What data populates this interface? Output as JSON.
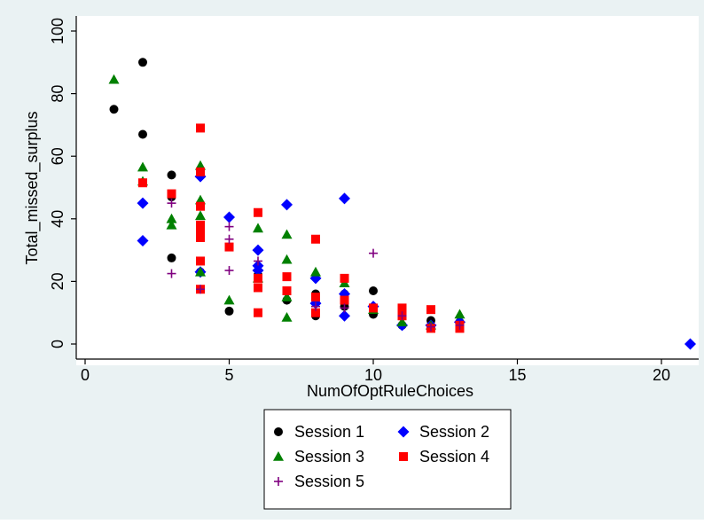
{
  "chart_data": {
    "type": "scatter",
    "xlabel": "NumOfOptRuleChoices",
    "ylabel": "Total_missed_surplus",
    "xlim": [
      0,
      22
    ],
    "ylim": [
      -5,
      100
    ],
    "xticks": [
      0,
      5,
      10,
      15,
      20
    ],
    "yticks": [
      0,
      20,
      40,
      60,
      80,
      100
    ],
    "grid": false,
    "legend_position": "bottom-center",
    "series": [
      {
        "name": "Session 1",
        "marker": "circle",
        "color": "#000000",
        "points": [
          [
            1,
            75
          ],
          [
            2,
            90
          ],
          [
            2,
            67
          ],
          [
            3,
            54
          ],
          [
            3,
            27.5
          ],
          [
            3,
            47
          ],
          [
            4,
            23
          ],
          [
            5,
            10.5
          ],
          [
            6,
            22
          ],
          [
            7,
            14
          ],
          [
            8,
            16
          ],
          [
            8,
            9
          ],
          [
            9,
            12
          ],
          [
            9,
            16
          ],
          [
            10,
            17
          ],
          [
            10,
            9.5
          ],
          [
            11,
            6
          ],
          [
            12,
            7.5
          ],
          [
            13,
            7
          ]
        ]
      },
      {
        "name": "Session 2",
        "marker": "diamond",
        "color": "#0000ff",
        "points": [
          [
            2,
            45
          ],
          [
            2,
            33
          ],
          [
            4,
            53.5
          ],
          [
            4,
            23
          ],
          [
            5,
            40.5
          ],
          [
            6,
            30
          ],
          [
            6,
            25
          ],
          [
            6,
            23.5
          ],
          [
            7,
            44.5
          ],
          [
            8,
            21
          ],
          [
            8,
            13
          ],
          [
            9,
            46.5
          ],
          [
            9,
            16
          ],
          [
            9,
            9
          ],
          [
            10,
            12
          ],
          [
            11,
            6
          ],
          [
            12,
            6
          ],
          [
            13,
            7
          ],
          [
            21,
            0
          ]
        ]
      },
      {
        "name": "Session 3",
        "marker": "triangle",
        "color": "#008000",
        "points": [
          [
            1,
            84.5
          ],
          [
            2,
            56.5
          ],
          [
            2,
            52
          ],
          [
            3,
            40
          ],
          [
            3,
            38
          ],
          [
            4,
            57
          ],
          [
            4,
            46
          ],
          [
            4,
            41
          ],
          [
            4,
            23
          ],
          [
            5,
            14
          ],
          [
            6,
            37
          ],
          [
            6,
            21
          ],
          [
            7,
            35
          ],
          [
            7,
            27
          ],
          [
            7,
            15
          ],
          [
            7,
            8.5
          ],
          [
            8,
            23
          ],
          [
            9,
            19.5
          ],
          [
            10,
            11
          ],
          [
            11,
            7
          ],
          [
            12,
            6
          ],
          [
            13,
            9.5
          ]
        ]
      },
      {
        "name": "Session 4",
        "marker": "square",
        "color": "#ff0000",
        "points": [
          [
            2,
            51.5
          ],
          [
            3,
            48
          ],
          [
            4,
            69
          ],
          [
            4,
            55
          ],
          [
            4,
            44
          ],
          [
            4,
            38
          ],
          [
            4,
            36
          ],
          [
            4,
            34
          ],
          [
            4,
            26.5
          ],
          [
            4,
            17.5
          ],
          [
            5,
            31
          ],
          [
            6,
            42
          ],
          [
            6,
            21
          ],
          [
            6,
            18
          ],
          [
            6,
            10
          ],
          [
            7,
            21.5
          ],
          [
            7,
            17
          ],
          [
            8,
            33.5
          ],
          [
            8,
            15
          ],
          [
            8,
            10
          ],
          [
            9,
            21
          ],
          [
            9,
            14
          ],
          [
            10,
            11.5
          ],
          [
            11,
            11.5
          ],
          [
            11,
            9
          ],
          [
            12,
            11
          ],
          [
            12,
            5
          ],
          [
            13,
            6
          ],
          [
            13,
            5
          ]
        ]
      },
      {
        "name": "Session 5",
        "marker": "plus",
        "color": "#800080",
        "points": [
          [
            3,
            45
          ],
          [
            3,
            22.5
          ],
          [
            4,
            17.5
          ],
          [
            5,
            37.5
          ],
          [
            5,
            33.5
          ],
          [
            5,
            23.5
          ],
          [
            6,
            26.5
          ],
          [
            8,
            12
          ],
          [
            9,
            11.5
          ],
          [
            10,
            29
          ],
          [
            11,
            9
          ],
          [
            12,
            5.5
          ],
          [
            13,
            6
          ]
        ]
      }
    ]
  }
}
